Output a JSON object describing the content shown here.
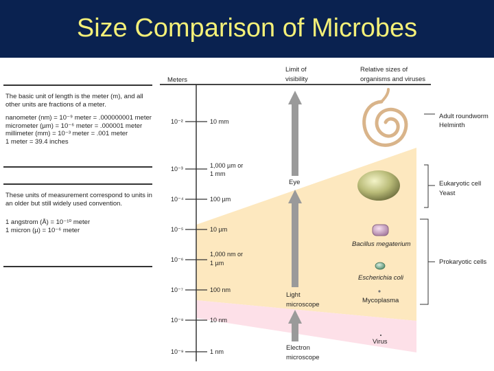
{
  "title": "Size Comparison of Microbes",
  "colors": {
    "banner": "#0a2250",
    "title": "#f4f078",
    "band_visible": "#fde8bf",
    "band_virus": "#fde0e8",
    "arrow": "#9a9a9a"
  },
  "left_box_1": {
    "intro": "The basic unit of length is the meter (m), and all other units are fractions of a meter.",
    "lines": [
      "nanometer (nm) = 10⁻⁹ meter = .000000001 meter",
      "micrometer (µm) = 10⁻⁶ meter = .000001 meter",
      "millimeter (mm) = 10⁻³ meter = .001 meter",
      "1 meter = 39.4 inches"
    ]
  },
  "left_box_2": {
    "intro": "These units of measurement correspond to units in an older but still widely used convention.",
    "lines": [
      "1 angstrom (Å) = 10⁻¹⁰ meter",
      "1 micron (µ) = 10⁻⁶ meter"
    ]
  },
  "headers": {
    "meters": "Meters",
    "limit_1": "Limit of",
    "limit_2": "visibility",
    "relative_1": "Relative sizes of",
    "relative_2": "organisms and viruses"
  },
  "scale": [
    {
      "power": "10⁻²",
      "label": [
        "10 mm"
      ]
    },
    {
      "power": "10⁻³",
      "label": [
        "1,000 µm or",
        "1 mm"
      ]
    },
    {
      "power": "10⁻⁴",
      "label": [
        "100 µm"
      ]
    },
    {
      "power": "10⁻⁵",
      "label": [
        "10 µm"
      ]
    },
    {
      "power": "10⁻⁶",
      "label": [
        "1,000 nm or",
        "1 µm"
      ]
    },
    {
      "power": "10⁻⁷",
      "label": [
        "100 nm"
      ]
    },
    {
      "power": "10⁻⁸",
      "label": [
        "10 nm"
      ]
    },
    {
      "power": "10⁻⁹",
      "label": [
        "1 nm"
      ]
    }
  ],
  "visibility": {
    "eye": "Eye",
    "light_1": "Light",
    "light_2": "microscope",
    "electron_1": "Electron",
    "electron_2": "microscope"
  },
  "organisms": {
    "bacillus": "Bacillus megaterium",
    "ecoli": "Escherichia coli",
    "mycoplasma": "Mycoplasma",
    "virus": "Virus"
  },
  "categories": {
    "adult_roundworm": "Adult roundworm",
    "helminth": "Helminth",
    "eukaryotic_cell": "Eukaryotic cell",
    "yeast": "Yeast",
    "prokaryotic_cells": "Prokaryotic cells"
  }
}
